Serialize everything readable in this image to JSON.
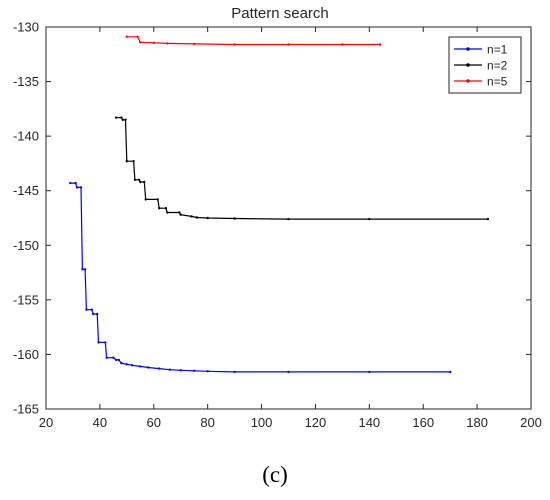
{
  "chart_data": {
    "type": "line",
    "title": "Pattern search",
    "xlabel": "",
    "ylabel": "",
    "xlim": [
      20,
      200
    ],
    "ylim": [
      -165,
      -130
    ],
    "xticks": [
      20,
      40,
      60,
      80,
      100,
      120,
      140,
      160,
      180,
      200
    ],
    "yticks": [
      -130,
      -135,
      -140,
      -145,
      -150,
      -155,
      -160,
      -165
    ],
    "grid": false,
    "legend_position": "top-right",
    "series": [
      {
        "name": "n=1",
        "color": "#0000ff",
        "points": [
          [
            29,
            -144.3
          ],
          [
            31,
            -144.3
          ],
          [
            31.5,
            -144.7
          ],
          [
            33,
            -144.7
          ],
          [
            33.5,
            -152.2
          ],
          [
            34.5,
            -152.2
          ],
          [
            35,
            -155.9
          ],
          [
            37,
            -155.9
          ],
          [
            37.5,
            -156.3
          ],
          [
            39,
            -156.3
          ],
          [
            39.5,
            -158.9
          ],
          [
            42,
            -158.9
          ],
          [
            42.5,
            -160.3
          ],
          [
            45,
            -160.3
          ],
          [
            46,
            -160.5
          ],
          [
            47,
            -160.5
          ],
          [
            48,
            -160.8
          ],
          [
            50,
            -160.9
          ],
          [
            52,
            -161.0
          ],
          [
            55,
            -161.1
          ],
          [
            58,
            -161.2
          ],
          [
            62,
            -161.3
          ],
          [
            66,
            -161.4
          ],
          [
            70,
            -161.45
          ],
          [
            75,
            -161.5
          ],
          [
            80,
            -161.55
          ],
          [
            90,
            -161.6
          ],
          [
            110,
            -161.6
          ],
          [
            140,
            -161.6
          ],
          [
            170,
            -161.6
          ]
        ]
      },
      {
        "name": "n=2",
        "color": "#000000",
        "points": [
          [
            46,
            -138.3
          ],
          [
            48,
            -138.3
          ],
          [
            48.5,
            -138.5
          ],
          [
            49.5,
            -138.5
          ],
          [
            50,
            -142.3
          ],
          [
            52.5,
            -142.3
          ],
          [
            53,
            -144.0
          ],
          [
            54.5,
            -144.0
          ],
          [
            55,
            -144.2
          ],
          [
            56.5,
            -144.2
          ],
          [
            57,
            -145.8
          ],
          [
            61.5,
            -145.8
          ],
          [
            62,
            -146.6
          ],
          [
            64.5,
            -146.6
          ],
          [
            65,
            -147.0
          ],
          [
            69.5,
            -147.0
          ],
          [
            70,
            -147.2
          ],
          [
            74,
            -147.35
          ],
          [
            76,
            -147.45
          ],
          [
            80,
            -147.5
          ],
          [
            90,
            -147.55
          ],
          [
            110,
            -147.6
          ],
          [
            140,
            -147.6
          ],
          [
            184,
            -147.6
          ]
        ]
      },
      {
        "name": "n=5",
        "color": "#ff0000",
        "points": [
          [
            50,
            -130.9
          ],
          [
            54,
            -130.9
          ],
          [
            55,
            -131.4
          ],
          [
            60,
            -131.45
          ],
          [
            65,
            -131.5
          ],
          [
            75,
            -131.55
          ],
          [
            90,
            -131.6
          ],
          [
            110,
            -131.6
          ],
          [
            130,
            -131.6
          ],
          [
            144,
            -131.6
          ]
        ]
      }
    ]
  },
  "caption": "(c)"
}
